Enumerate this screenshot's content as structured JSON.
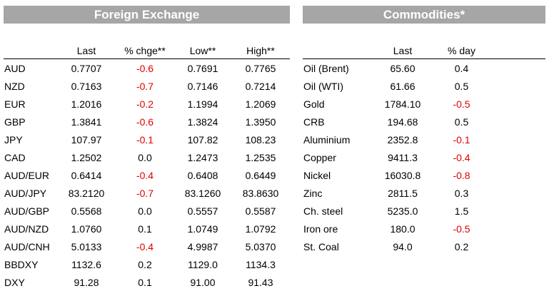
{
  "fx": {
    "title": "Foreign Exchange",
    "columns": [
      "",
      "Last",
      "% chge**",
      "Low**",
      "High**"
    ],
    "rows": [
      [
        "AUD",
        "0.7707",
        "-0.6",
        "0.7691",
        "0.7765"
      ],
      [
        "NZD",
        "0.7163",
        "-0.7",
        "0.7146",
        "0.7214"
      ],
      [
        "EUR",
        "1.2016",
        "-0.2",
        "1.1994",
        "1.2069"
      ],
      [
        "GBP",
        "1.3841",
        "-0.6",
        "1.3824",
        "1.3950"
      ],
      [
        "JPY",
        "107.97",
        "-0.1",
        "107.82",
        "108.23"
      ],
      [
        "CAD",
        "1.2502",
        "0.0",
        "1.2473",
        "1.2535"
      ],
      [
        "AUD/EUR",
        "0.6414",
        "-0.4",
        "0.6408",
        "0.6449"
      ],
      [
        "AUD/JPY",
        "83.2120",
        "-0.7",
        "83.1260",
        "83.8630"
      ],
      [
        "AUD/GBP",
        "0.5568",
        "0.0",
        "0.5557",
        "0.5587"
      ],
      [
        "AUD/NZD",
        "1.0760",
        "0.1",
        "1.0749",
        "1.0792"
      ],
      [
        "AUD/CNH",
        "5.0133",
        "-0.4",
        "4.9987",
        "5.0370"
      ],
      [
        "BBDXY",
        "1132.6",
        "0.2",
        "1129.0",
        "1134.3"
      ],
      [
        "DXY",
        "91.28",
        "0.1",
        "91.00",
        "91.43"
      ]
    ]
  },
  "commodities": {
    "title": "Commodities*",
    "columns": [
      "",
      "Last",
      "% day"
    ],
    "rows": [
      [
        "Oil (Brent)",
        "65.60",
        "0.4"
      ],
      [
        "Oil (WTI)",
        "61.66",
        "0.5"
      ],
      [
        "Gold",
        "1784.10",
        "-0.5"
      ],
      [
        "CRB",
        "194.68",
        "0.5"
      ],
      [
        "Aluminium",
        "2352.8",
        "-0.1"
      ],
      [
        "Copper",
        "9411.3",
        "-0.4"
      ],
      [
        "Nickel",
        "16030.8",
        "-0.8"
      ],
      [
        "Zinc",
        "2811.5",
        "0.3"
      ],
      [
        "Ch. steel",
        "5235.0",
        "1.5"
      ],
      [
        "Iron ore",
        "180.0",
        "-0.5"
      ],
      [
        "St. Coal",
        "94.0",
        "0.2"
      ]
    ]
  },
  "colors": {
    "banner": "#a6a6a6",
    "negative": "#e00000"
  }
}
